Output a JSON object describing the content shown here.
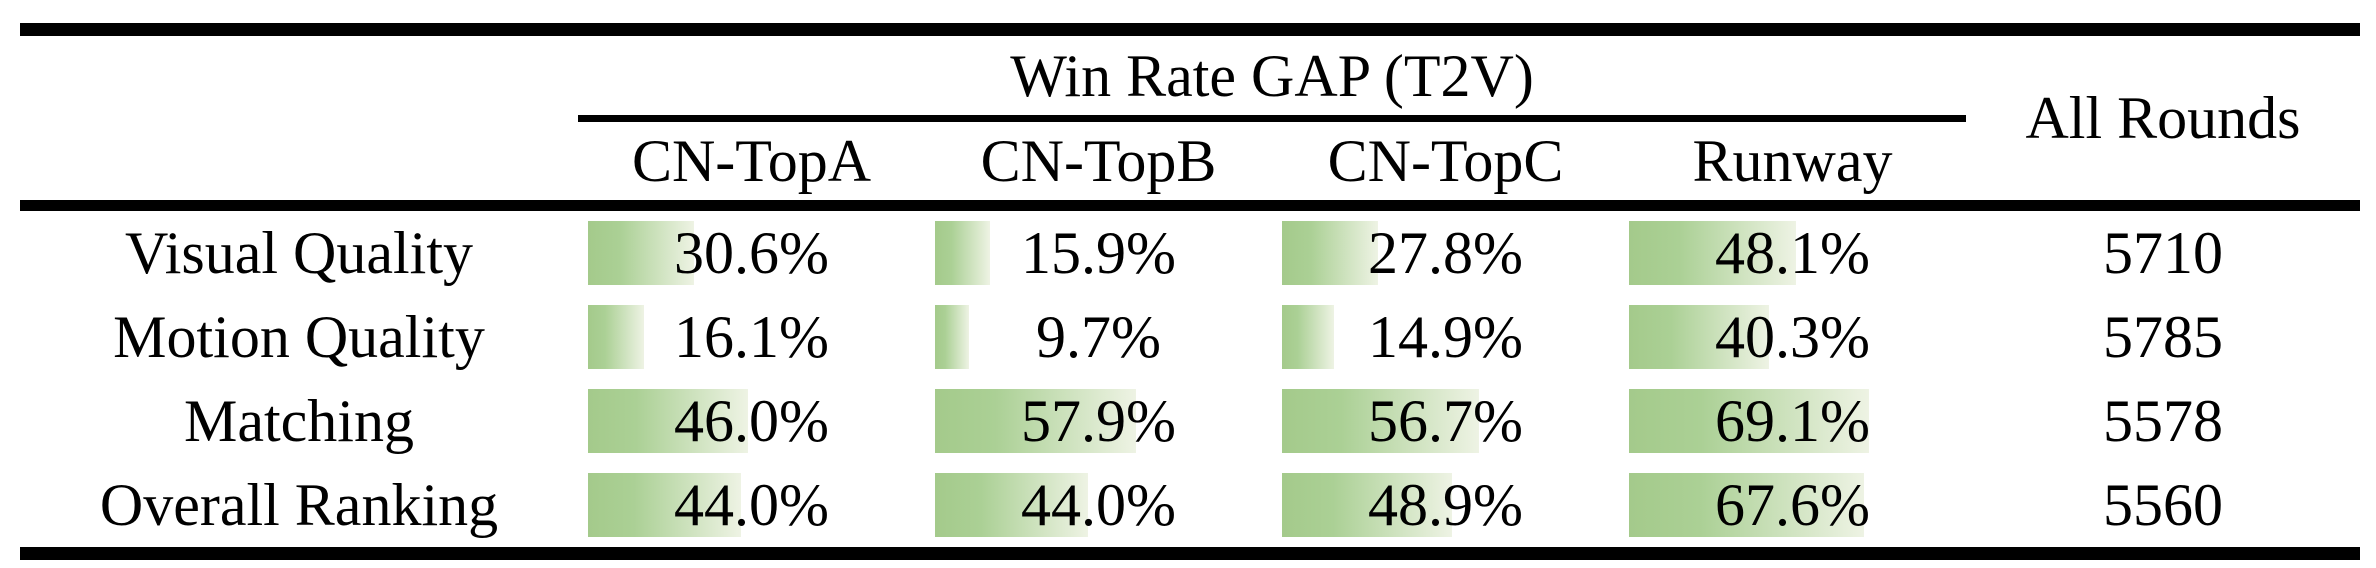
{
  "figure": {
    "header": {
      "group_title": "Win Rate GAP (T2V)",
      "model_columns": [
        "CN-TopA",
        "CN-TopB",
        "CN-TopC",
        "Runway"
      ],
      "all_rounds_label": "All Rounds"
    },
    "rows": [
      {
        "label": "Visual Quality",
        "values": [
          "30.6%",
          "15.9%",
          "27.8%",
          "48.1%"
        ],
        "bars": [
          30.6,
          15.9,
          27.8,
          48.1
        ],
        "all_rounds": "5710"
      },
      {
        "label": "Motion Quality",
        "values": [
          "16.1%",
          "9.7%",
          "14.9%",
          "40.3%"
        ],
        "bars": [
          16.1,
          9.7,
          14.9,
          40.3
        ],
        "all_rounds": "5785"
      },
      {
        "label": "Matching",
        "values": [
          "46.0%",
          "57.9%",
          "56.7%",
          "69.1%"
        ],
        "bars": [
          46.0,
          57.9,
          56.7,
          69.1
        ],
        "all_rounds": "5578"
      },
      {
        "label": "Overall Ranking",
        "values": [
          "44.0%",
          "44.0%",
          "48.9%",
          "67.6%"
        ],
        "bars": [
          44.0,
          44.0,
          48.9,
          67.6
        ],
        "all_rounds": "5560"
      }
    ]
  },
  "colors": {
    "bar-green": "#a4ca8b",
    "bar-green-mid": "#abd095",
    "bar-fade": "#eef3e4",
    "rule-black": "#000000",
    "text-black": "#000000"
  },
  "chart_data": {
    "type": "table",
    "title": "Win Rate GAP (T2V)",
    "row_header": [
      "Visual Quality",
      "Motion Quality",
      "Matching",
      "Overall Ranking"
    ],
    "columns": [
      "CN-TopA",
      "CN-TopB",
      "CN-TopC",
      "Runway",
      "All Rounds"
    ],
    "series": [
      {
        "name": "CN-TopA",
        "unit": "%",
        "values": [
          30.6,
          16.1,
          46.0,
          44.0
        ]
      },
      {
        "name": "CN-TopB",
        "unit": "%",
        "values": [
          15.9,
          9.7,
          57.9,
          44.0
        ]
      },
      {
        "name": "CN-TopC",
        "unit": "%",
        "values": [
          27.8,
          14.9,
          56.7,
          48.9
        ]
      },
      {
        "name": "Runway",
        "unit": "%",
        "values": [
          48.1,
          40.3,
          69.1,
          67.6
        ]
      },
      {
        "name": "All Rounds",
        "unit": "count",
        "values": [
          5710,
          5785,
          5578,
          5560
        ]
      }
    ],
    "layout_hints": {
      "bar_style": "in-cell green gradient data bars, left-aligned, width proportional to percentage (100% = full cell width)",
      "grid": "off",
      "rules": [
        "thick top rule",
        "partial rule under group title spanning model columns",
        "thick rule under header",
        "thick bottom rule"
      ]
    }
  }
}
